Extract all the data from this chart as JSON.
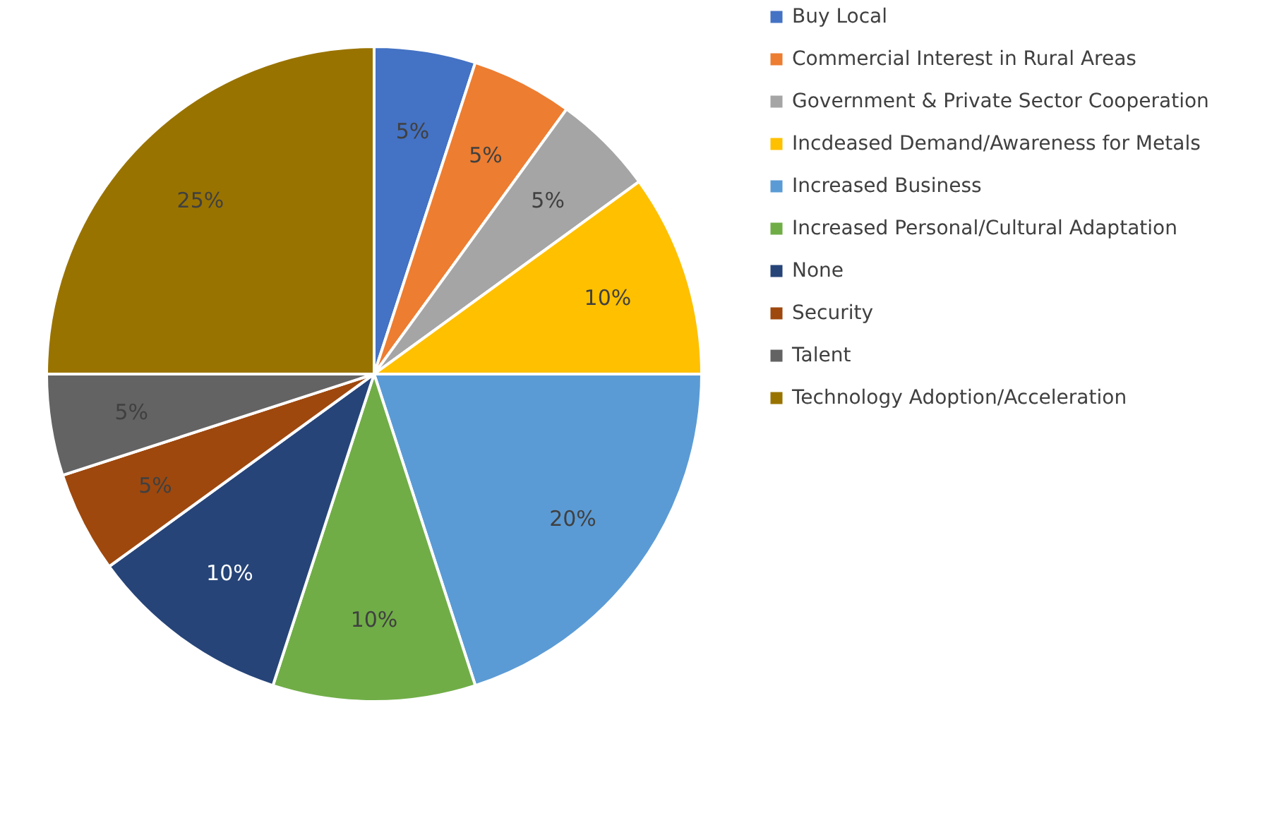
{
  "chart_data": {
    "type": "pie",
    "categories": [
      "Buy Local",
      "Commercial Interest in Rural Areas",
      "Government & Private Sector Cooperation",
      "Incdeased Demand/Awareness for Metals",
      "Increased Business",
      "Increased Personal/Cultural Adaptation",
      "None",
      "Security",
      "Talent",
      "Technology Adoption/Acceleration"
    ],
    "values": [
      5,
      5,
      5,
      10,
      20,
      10,
      10,
      5,
      5,
      25
    ],
    "value_labels": [
      "5%",
      "5%",
      "5%",
      "10%",
      "20%",
      "10%",
      "10%",
      "5%",
      "5%",
      "25%"
    ],
    "colors": [
      "#4472c4",
      "#ed7d31",
      "#a5a5a5",
      "#ffc000",
      "#5b9bd5",
      "#70ad47",
      "#264478",
      "#9e480e",
      "#636363",
      "#997300"
    ],
    "legend": "right"
  }
}
